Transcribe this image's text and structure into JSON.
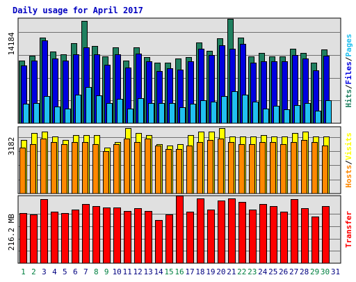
{
  "colors": {
    "background": "#ffffff",
    "panel_bg": "#e0e0e0",
    "frame": "#000000",
    "gridline": "#707070",
    "title": "#0000c0",
    "hits": "#208060",
    "files": "#0000e0",
    "pages": "#20c0f0",
    "hosts": "#ff8800",
    "visits": "#ffff00",
    "transfer": "#ff0000",
    "weekend_label": "#008040",
    "weekday_label": "#000080"
  },
  "chart_data": {
    "type": "bar",
    "title": "Daily usage for April 2017",
    "categories": [
      "1",
      "2",
      "3",
      "4",
      "5",
      "6",
      "7",
      "8",
      "9",
      "10",
      "11",
      "12",
      "13",
      "14",
      "15",
      "16",
      "17",
      "18",
      "19",
      "20",
      "21",
      "22",
      "23",
      "24",
      "25",
      "26",
      "27",
      "28",
      "29",
      "30",
      "31"
    ],
    "weekend_days": [
      "1",
      "2",
      "8",
      "9",
      "15",
      "16",
      "22",
      "23",
      "29",
      "30"
    ],
    "panels": [
      {
        "key": "hits_files_pages",
        "y_tick_label": "14184",
        "y_tick_value": 14184,
        "ylim": [
          0,
          16400
        ],
        "right_label_parts": [
          {
            "text": "Hits",
            "color": "#208060"
          },
          {
            "text": "/",
            "color": "#000000"
          },
          {
            "text": "Files",
            "color": "#0000e0"
          },
          {
            "text": "/",
            "color": "#000000"
          },
          {
            "text": "Pages",
            "color": "#20c0f0"
          }
        ],
        "series": [
          {
            "name": "Hits",
            "values": [
              9800,
              10500,
              13400,
              11200,
              10700,
              12500,
              16000,
              12100,
              10400,
              11800,
              9800,
              11800,
              10300,
              9400,
              9500,
              10100,
              10300,
              12600,
              11300,
              13200,
              16300,
              13400,
              10400,
              11000,
              10400,
              10400,
              11600,
              11000,
              9400,
              11500,
              0
            ]
          },
          {
            "name": "Files",
            "values": [
              9000,
              9800,
              12900,
              10100,
              9800,
              10800,
              11800,
              10800,
              9100,
              10700,
              8700,
              10900,
              9700,
              8200,
              8600,
              8400,
              9700,
              11600,
              10600,
              12200,
              11600,
              12400,
              9400,
              9700,
              9700,
              9700,
              10600,
              10100,
              8300,
              10500,
              0
            ]
          },
          {
            "name": "Pages",
            "values": [
              3000,
              3100,
              4200,
              2600,
              2300,
              4500,
              5600,
              4300,
              3100,
              3800,
              2300,
              3900,
              3200,
              3100,
              3100,
              2500,
              3000,
              3600,
              3400,
              4200,
              5000,
              4400,
              3400,
              2300,
              2700,
              2200,
              2800,
              3100,
              2000,
              3600,
              0
            ]
          }
        ]
      },
      {
        "key": "hosts_visits",
        "y_tick_label": "3182",
        "y_tick_value": 3182,
        "ylim": [
          0,
          3760
        ],
        "right_label_parts": [
          {
            "text": "Hosts",
            "color": "#ff8800"
          },
          {
            "text": "/",
            "color": "#000000"
          },
          {
            "text": "Visits",
            "color": "#ffff00"
          }
        ],
        "series": [
          {
            "name": "Visits",
            "values": [
              3000,
              3400,
              3500,
              3200,
              3000,
              3300,
              3300,
              3300,
              2600,
              2900,
              3700,
              3400,
              3300,
              2800,
              2700,
              2800,
              3300,
              3500,
              3500,
              3700,
              3200,
              3200,
              3200,
              3300,
              3200,
              3200,
              3400,
              3500,
              3200,
              3200,
              0
            ]
          },
          {
            "name": "Hosts",
            "values": [
              2600,
              2800,
              3100,
              2900,
              2800,
              2900,
              2900,
              2800,
              2400,
              2800,
              3100,
              2900,
              3100,
              2700,
              2500,
              2500,
              2700,
              2900,
              3000,
              3100,
              2900,
              2800,
              2800,
              2900,
              2900,
              2800,
              2900,
              3000,
              2900,
              2700,
              0
            ]
          }
        ]
      },
      {
        "key": "transfer",
        "y_tick_label": "216.2 MB",
        "y_tick_value": 216.2,
        "ylim": [
          0,
          296
        ],
        "right_label_parts": [
          {
            "text": "Transfer",
            "color": "#ff0000"
          }
        ],
        "series": [
          {
            "name": "Transfer",
            "values": [
              220,
              215,
              280,
              225,
              220,
              235,
              260,
              250,
              245,
              245,
              230,
              240,
              230,
              190,
              215,
              295,
              225,
              285,
              235,
              275,
              285,
              270,
              235,
              260,
              250,
              225,
              280,
              240,
              205,
              250,
              0
            ]
          }
        ]
      }
    ]
  }
}
